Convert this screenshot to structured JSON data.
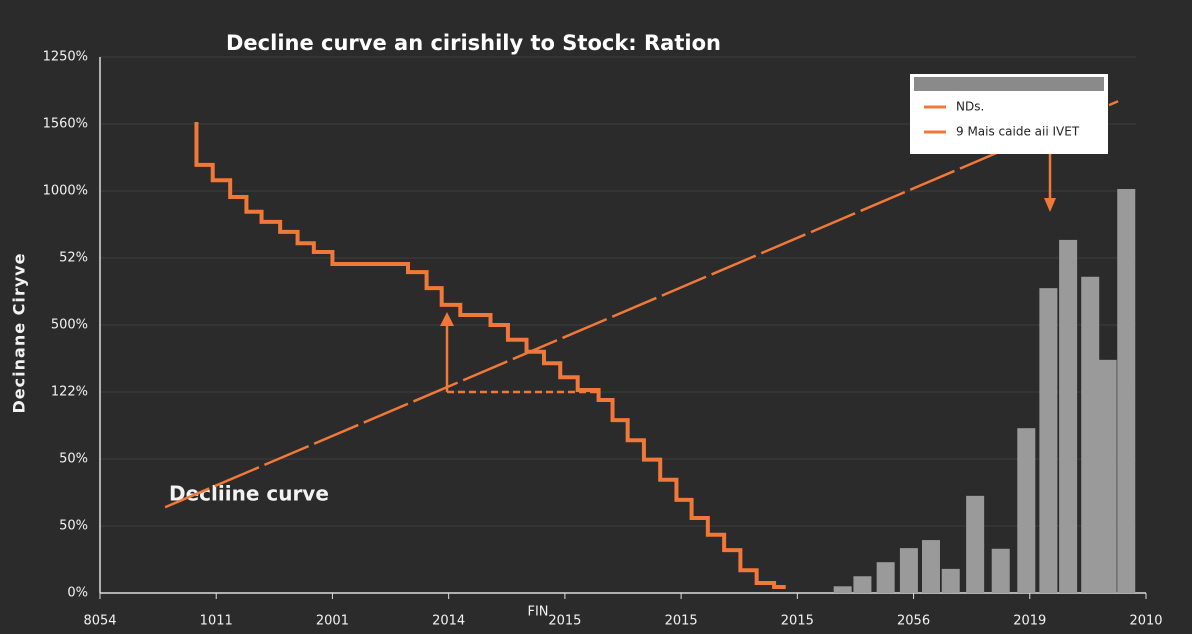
{
  "chart_data": {
    "type": "line",
    "title": "Decline curve an cirishily to Stock: Ration",
    "ylabel": "Decinane Ciryve",
    "xlabel": "FIN",
    "annotation": "Decliine curve",
    "xlim": [
      0,
      9
    ],
    "ylim": [
      0,
      8
    ],
    "xticks": [
      {
        "value": 0,
        "label": "8054"
      },
      {
        "value": 1,
        "label": "1011"
      },
      {
        "value": 2,
        "label": "2001"
      },
      {
        "value": 3,
        "label": "2014"
      },
      {
        "value": 4,
        "label": "2015"
      },
      {
        "value": 5,
        "label": "2015"
      },
      {
        "value": 6,
        "label": "2015"
      },
      {
        "value": 7,
        "label": "2056"
      },
      {
        "value": 8,
        "label": "2019"
      },
      {
        "value": 9,
        "label": "2010"
      }
    ],
    "yticks": [
      {
        "value": 0,
        "label": "0%"
      },
      {
        "value": 1,
        "label": "50%"
      },
      {
        "value": 2,
        "label": "50%"
      },
      {
        "value": 3,
        "label": "122%"
      },
      {
        "value": 4,
        "label": "500%"
      },
      {
        "value": 5,
        "label": "52%"
      },
      {
        "value": 6,
        "label": "1000%"
      },
      {
        "value": 7,
        "label": "1560%"
      },
      {
        "value": 8,
        "label": "1250%"
      }
    ],
    "grid": true,
    "legend": "upper right",
    "series": [
      {
        "name": "NDs.",
        "color": "#f07838",
        "style": "step",
        "x": [
          0.83,
          0.83,
          0.97,
          1.12,
          1.26,
          1.39,
          1.55,
          1.7,
          1.84,
          2.0,
          2.65,
          2.81,
          2.94,
          3.1,
          3.36,
          3.51,
          3.67,
          3.82,
          3.96,
          4.11,
          4.29,
          4.41,
          4.54,
          4.68,
          4.82,
          4.96,
          5.09,
          5.23,
          5.37,
          5.51,
          5.65,
          5.8,
          5.9
        ],
        "values": [
          7.03,
          6.39,
          6.16,
          5.91,
          5.69,
          5.54,
          5.39,
          5.22,
          5.09,
          4.91,
          4.79,
          4.55,
          4.3,
          4.15,
          4.0,
          3.78,
          3.6,
          3.43,
          3.22,
          3.03,
          2.88,
          2.58,
          2.28,
          1.99,
          1.69,
          1.39,
          1.12,
          0.87,
          0.64,
          0.34,
          0.15,
          0.09,
          0.09
        ]
      },
      {
        "name": "9 Mais caide aii IVET",
        "color": "#f07838",
        "style": "dashed",
        "x": [
          0.56,
          8.76
        ],
        "values": [
          1.28,
          7.34
        ]
      },
      {
        "color": "#9a9a9a",
        "style": "bar",
        "x": [
          6.39,
          6.56,
          6.76,
          6.96,
          7.15,
          7.32,
          7.53,
          7.75,
          7.97,
          8.16,
          8.33,
          8.52,
          8.67,
          8.83
        ],
        "values": [
          0.1,
          0.25,
          0.46,
          0.67,
          0.79,
          0.36,
          1.45,
          0.66,
          2.46,
          4.55,
          5.27,
          4.72,
          3.48,
          6.03
        ]
      }
    ]
  }
}
